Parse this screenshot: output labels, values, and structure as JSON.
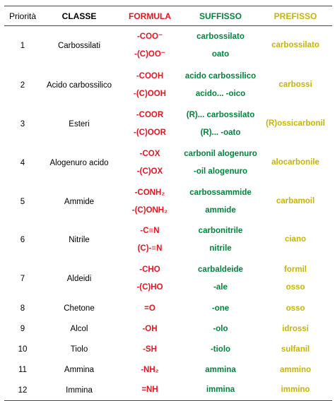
{
  "headers": {
    "priorita": "Priorità",
    "classe": "CLASSE",
    "formula": "FORMULA",
    "suffisso": "SUFFISSO",
    "prefisso": "PREFISSO"
  },
  "rows": [
    {
      "prio": "1",
      "classe": "Carbossilati",
      "formula": [
        "-COO⁻",
        "-(C)OO⁻"
      ],
      "suffisso": [
        "carbossilato",
        "oato"
      ],
      "prefisso": [
        "carbossilato"
      ]
    },
    {
      "prio": "2",
      "classe": "Acido carbossilico",
      "formula": [
        "-COOH",
        "-(C)OOH"
      ],
      "suffisso": [
        "acido carbossilico",
        "acido... -oico"
      ],
      "prefisso": [
        "carbossi"
      ]
    },
    {
      "prio": "3",
      "classe": "Esteri",
      "formula": [
        "-COOR",
        "-(C)OOR"
      ],
      "suffisso": [
        "(R)... carbossilato",
        "(R)... -oato"
      ],
      "prefisso": [
        "(R)ossicarbonil"
      ]
    },
    {
      "prio": "4",
      "classe": "Alogenuro acido",
      "formula": [
        "-COX",
        "-(C)OX"
      ],
      "suffisso": [
        "carbonil alogenuro",
        "-oil alogenuro"
      ],
      "prefisso": [
        "alocarbonile"
      ]
    },
    {
      "prio": "5",
      "classe": "Ammide",
      "formula": [
        "-CONH₂",
        "-(C)ONH₂"
      ],
      "suffisso": [
        "carbossammide",
        "ammide"
      ],
      "prefisso": [
        "carbamoil"
      ]
    },
    {
      "prio": "6",
      "classe": "Nitrile",
      "formula": [
        "-C≡N",
        "(C)-≡N"
      ],
      "suffisso": [
        "carbonitrile",
        "nitrile"
      ],
      "prefisso": [
        "ciano"
      ]
    },
    {
      "prio": "7",
      "classe": "Aldeidi",
      "formula": [
        "-CHO",
        "-(C)HO"
      ],
      "suffisso": [
        "carbaldeide",
        "-ale"
      ],
      "prefisso": [
        "formil",
        "osso"
      ]
    },
    {
      "prio": "8",
      "classe": "Chetone",
      "formula": [
        "=O"
      ],
      "suffisso": [
        "-one"
      ],
      "prefisso": [
        "osso"
      ]
    },
    {
      "prio": "9",
      "classe": "Alcol",
      "formula": [
        "-OH"
      ],
      "suffisso": [
        "-olo"
      ],
      "prefisso": [
        "idrossi"
      ]
    },
    {
      "prio": "10",
      "classe": "Tiolo",
      "formula": [
        "-SH"
      ],
      "suffisso": [
        "-tiolo"
      ],
      "prefisso": [
        "sulfanil"
      ]
    },
    {
      "prio": "11",
      "classe": "Ammina",
      "formula": [
        "-NH₂"
      ],
      "suffisso": [
        "ammina"
      ],
      "prefisso": [
        "ammino"
      ]
    },
    {
      "prio": "12",
      "classe": "Immina",
      "formula": [
        "=NH"
      ],
      "suffisso": [
        "immina"
      ],
      "prefisso": [
        "immino"
      ]
    }
  ]
}
